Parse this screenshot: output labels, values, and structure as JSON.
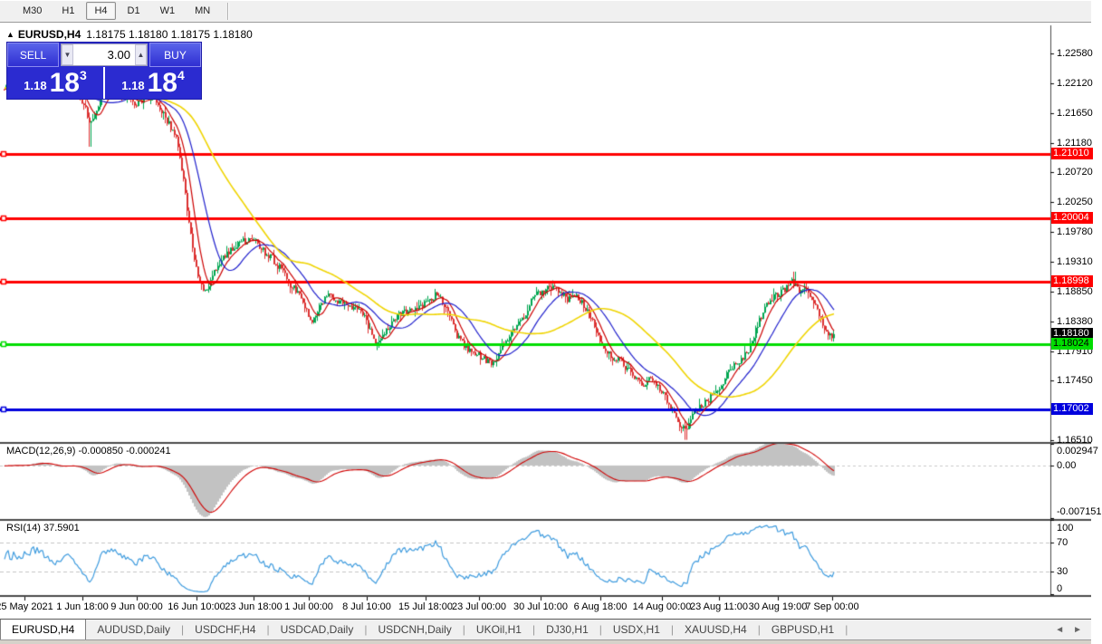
{
  "toolbar": {
    "timeframes": [
      {
        "label": "M30",
        "active": false
      },
      {
        "label": "H1",
        "active": false
      },
      {
        "label": "H4",
        "active": true
      },
      {
        "label": "D1",
        "active": false
      },
      {
        "label": "W1",
        "active": false
      },
      {
        "label": "MN",
        "active": false
      }
    ]
  },
  "caption": {
    "marker": "▲",
    "symbol": "EURUSD,H4",
    "quote": "1.18175 1.18180 1.18175 1.18180"
  },
  "trade_panel": {
    "sell_label": "SELL",
    "buy_label": "BUY",
    "volume": "3.00",
    "down_arrow": "▼",
    "up_arrow": "▲",
    "sell_price": {
      "prefix": "1.18",
      "big": "18",
      "sup": "3"
    },
    "buy_price": {
      "prefix": "1.18",
      "big": "18",
      "sup": "4"
    }
  },
  "price_axis": {
    "ticks": [
      "1.22580",
      "1.22120",
      "1.21650",
      "1.21180",
      "1.20720",
      "1.20250",
      "1.19780",
      "1.19310",
      "1.18850",
      "1.18380",
      "1.17910",
      "1.17450",
      "1.16510"
    ],
    "line_labels": [
      {
        "value": "1.21010",
        "price": 1.2101,
        "bg": "#ff0000",
        "fg": "#ffffff"
      },
      {
        "value": "1.20004",
        "price": 1.20004,
        "bg": "#ff0000",
        "fg": "#ffffff"
      },
      {
        "value": "1.18998",
        "price": 1.18998,
        "bg": "#ff0000",
        "fg": "#ffffff"
      },
      {
        "value": "1.18180",
        "price": 1.1818,
        "bg": "#000000",
        "fg": "#ffffff"
      },
      {
        "value": "1.18024",
        "price": 1.18024,
        "bg": "#00dd00",
        "fg": "#000000"
      },
      {
        "value": "1.17002",
        "price": 1.17002,
        "bg": "#0000dd",
        "fg": "#ffffff"
      }
    ]
  },
  "macd_panel": {
    "label": "MACD(12,26,9)",
    "value_main": "-0.000850",
    "value_signal": "-0.000241",
    "axis_labels": [
      {
        "text": "0.002947",
        "v": 0.002947
      },
      {
        "text": "0.00",
        "v": 0
      },
      {
        "text": "-0.007151",
        "v": -0.007151
      }
    ]
  },
  "rsi_panel": {
    "label": "RSI(14)",
    "value": "37.5901",
    "axis_labels": [
      {
        "text": "100",
        "v": 100
      },
      {
        "text": "70",
        "v": 70
      },
      {
        "text": "30",
        "v": 30
      },
      {
        "text": "0",
        "v": 0
      }
    ]
  },
  "time_axis": {
    "labels": [
      {
        "text": "25 May 2021",
        "x": 27
      },
      {
        "text": "1 Jun 18:00",
        "x": 91
      },
      {
        "text": "9 Jun 00:00",
        "x": 151
      },
      {
        "text": "16 Jun 10:00",
        "x": 217
      },
      {
        "text": "23 Jun 18:00",
        "x": 280
      },
      {
        "text": "1 Jul 00:00",
        "x": 341
      },
      {
        "text": "8 Jul 10:00",
        "x": 405
      },
      {
        "text": "15 Jul 18:00",
        "x": 470
      },
      {
        "text": "23 Jul 00:00",
        "x": 529
      },
      {
        "text": "30 Jul 10:00",
        "x": 597
      },
      {
        "text": "6 Aug 18:00",
        "x": 663
      },
      {
        "text": "14 Aug 00:00",
        "x": 731
      },
      {
        "text": "23 Aug 11:00",
        "x": 794
      },
      {
        "text": "30 Aug 19:00",
        "x": 859
      },
      {
        "text": "7 Sep 00:00",
        "x": 919
      }
    ]
  },
  "tabs": {
    "items": [
      {
        "label": "EURUSD,H4",
        "active": true
      },
      {
        "label": "AUDUSD,Daily",
        "active": false
      },
      {
        "label": "USDCHF,H4",
        "active": false
      },
      {
        "label": "USDCAD,Daily",
        "active": false
      },
      {
        "label": "USDCNH,Daily",
        "active": false
      },
      {
        "label": "UKOil,H1",
        "active": false
      },
      {
        "label": "DJ30,H1",
        "active": false
      },
      {
        "label": "USDX,H1",
        "active": false
      },
      {
        "label": "XAUUSD,H4",
        "active": false
      },
      {
        "label": "GBPUSD,H1",
        "active": false
      }
    ],
    "left_arrow": "◄",
    "right_arrow": "►"
  },
  "chart_data": {
    "type": "candlestick",
    "symbol": "EURUSD",
    "timeframe": "H4",
    "current_price": 1.1818,
    "ylim": [
      1.165,
      1.23025
    ],
    "x_range": [
      5,
      921
    ],
    "bar_step": 2,
    "candle_up_color": "#00a651",
    "candle_down_color": "#dc3030",
    "price_path": [
      [
        5,
        1.2205
      ],
      [
        27,
        1.2208
      ],
      [
        45,
        1.2222
      ],
      [
        60,
        1.2195
      ],
      [
        75,
        1.221
      ],
      [
        88,
        1.2195
      ],
      [
        100,
        1.215
      ],
      [
        112,
        1.219
      ],
      [
        125,
        1.2202
      ],
      [
        138,
        1.2192
      ],
      [
        151,
        1.2178
      ],
      [
        163,
        1.2192
      ],
      [
        175,
        1.218
      ],
      [
        188,
        1.2145
      ],
      [
        196,
        1.212
      ],
      [
        204,
        1.205
      ],
      [
        212,
        1.196
      ],
      [
        220,
        1.19
      ],
      [
        228,
        1.1885
      ],
      [
        237,
        1.1915
      ],
      [
        246,
        1.1935
      ],
      [
        256,
        1.195
      ],
      [
        266,
        1.1962
      ],
      [
        280,
        1.1968
      ],
      [
        290,
        1.195
      ],
      [
        300,
        1.1938
      ],
      [
        310,
        1.192
      ],
      [
        320,
        1.1898
      ],
      [
        330,
        1.188
      ],
      [
        338,
        1.1855
      ],
      [
        346,
        1.1838
      ],
      [
        354,
        1.1862
      ],
      [
        362,
        1.188
      ],
      [
        372,
        1.187
      ],
      [
        382,
        1.1863
      ],
      [
        392,
        1.186
      ],
      [
        402,
        1.185
      ],
      [
        410,
        1.182
      ],
      [
        416,
        1.1798
      ],
      [
        424,
        1.1815
      ],
      [
        434,
        1.184
      ],
      [
        444,
        1.1852
      ],
      [
        454,
        1.1856
      ],
      [
        464,
        1.186
      ],
      [
        474,
        1.1868
      ],
      [
        482,
        1.188
      ],
      [
        490,
        1.1868
      ],
      [
        498,
        1.184
      ],
      [
        506,
        1.1812
      ],
      [
        514,
        1.1798
      ],
      [
        524,
        1.1788
      ],
      [
        534,
        1.178
      ],
      [
        544,
        1.1772
      ],
      [
        552,
        1.179
      ],
      [
        562,
        1.1812
      ],
      [
        572,
        1.1836
      ],
      [
        582,
        1.1852
      ],
      [
        590,
        1.1878
      ],
      [
        600,
        1.1886
      ],
      [
        610,
        1.1892
      ],
      [
        618,
        1.1884
      ],
      [
        628,
        1.1872
      ],
      [
        636,
        1.1882
      ],
      [
        646,
        1.1862
      ],
      [
        656,
        1.1832
      ],
      [
        666,
        1.1802
      ],
      [
        676,
        1.1782
      ],
      [
        686,
        1.1776
      ],
      [
        694,
        1.1762
      ],
      [
        702,
        1.1748
      ],
      [
        710,
        1.1736
      ],
      [
        718,
        1.1748
      ],
      [
        726,
        1.174
      ],
      [
        734,
        1.1722
      ],
      [
        742,
        1.1702
      ],
      [
        750,
        1.1678
      ],
      [
        758,
        1.1665
      ],
      [
        766,
        1.1692
      ],
      [
        774,
        1.1706
      ],
      [
        782,
        1.1714
      ],
      [
        790,
        1.1727
      ],
      [
        798,
        1.1742
      ],
      [
        806,
        1.176
      ],
      [
        814,
        1.1772
      ],
      [
        822,
        1.1782
      ],
      [
        830,
        1.18
      ],
      [
        838,
        1.1838
      ],
      [
        846,
        1.1862
      ],
      [
        854,
        1.1876
      ],
      [
        862,
        1.1882
      ],
      [
        870,
        1.1892
      ],
      [
        876,
        1.1902
      ],
      [
        882,
        1.1886
      ],
      [
        888,
        1.189
      ],
      [
        894,
        1.188
      ],
      [
        900,
        1.1862
      ],
      [
        906,
        1.1845
      ],
      [
        912,
        1.1822
      ],
      [
        918,
        1.1812
      ],
      [
        921,
        1.1818
      ]
    ],
    "spikes": [
      {
        "x": 100,
        "low": 1.2112
      },
      {
        "x": 758,
        "low": 1.1652
      },
      {
        "x": 878,
        "high": 1.1916
      }
    ],
    "horizontal_lines": [
      {
        "price": 1.2101,
        "color": "#ff0000"
      },
      {
        "price": 1.20004,
        "color": "#ff0000"
      },
      {
        "price": 1.18998,
        "color": "#ff0000"
      },
      {
        "price": 1.18024,
        "color": "#00dd00"
      },
      {
        "price": 1.17002,
        "color": "#0000dd"
      }
    ],
    "moving_averages": [
      {
        "period": 8,
        "color": "#cc0000",
        "width": 1.2
      },
      {
        "period": 21,
        "color": "#1f1fcc",
        "width": 1.2
      },
      {
        "period": 55,
        "color": "#efd400",
        "width": 1.6
      }
    ],
    "macd": {
      "fast": 12,
      "slow": 26,
      "signal": 9,
      "current": -0.00085,
      "current_signal": -0.000241,
      "max": 0.002947,
      "min": -0.007151,
      "hist_color": "#c2c2c2",
      "signal_color": "#d00000"
    },
    "rsi": {
      "period": 14,
      "current": 37.5901,
      "color": "#3e9bde",
      "levels": [
        70,
        30
      ]
    }
  }
}
